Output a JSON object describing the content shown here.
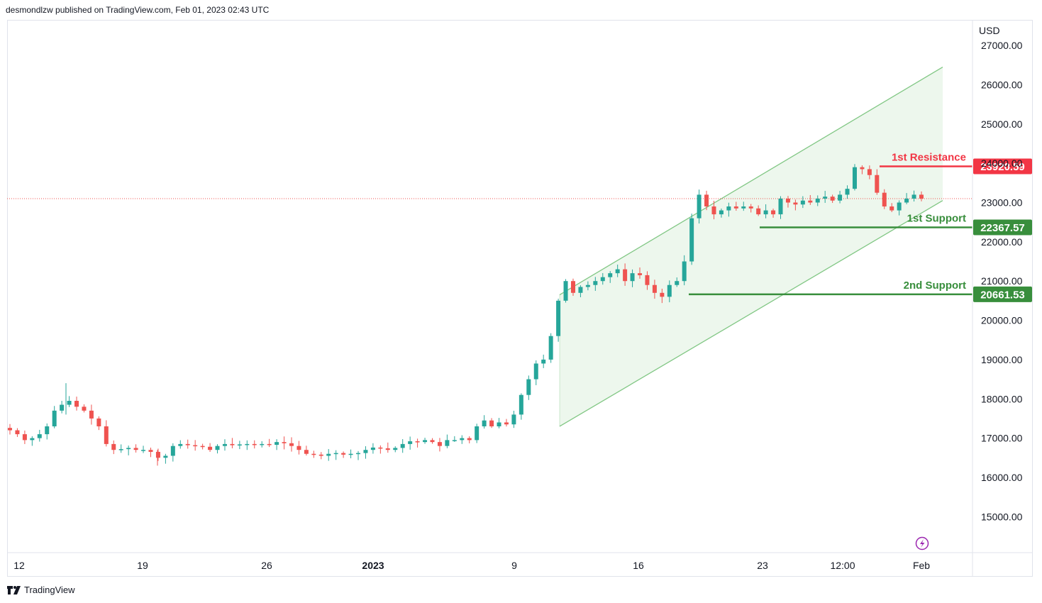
{
  "header": {
    "text": "desmondlzw published on TradingView.com, Feb 01, 2023 02:43 UTC"
  },
  "footer": {
    "brand": "TradingView"
  },
  "colors": {
    "up": "#26a69a",
    "down": "#ef5350",
    "channel": "#4caf50",
    "resistance": "#f23645",
    "support": "#388e3c"
  },
  "chart_data": {
    "type": "candlestick",
    "currency_label": "USD",
    "y_ticks": [
      15000,
      16000,
      17000,
      18000,
      19000,
      20000,
      21000,
      22000,
      23000,
      24000,
      25000,
      26000,
      27000
    ],
    "y_tick_labels": [
      "15000.00",
      "16000.00",
      "17000.00",
      "18000.00",
      "19000.00",
      "20000.00",
      "21000.00",
      "22000.00",
      "23000.00",
      "24000.00",
      "25000.00",
      "26000.00",
      "27000.00"
    ],
    "x_tick_labels": [
      "12",
      "19",
      "26",
      "2023",
      "9",
      "16",
      "23",
      "12:00",
      "Feb"
    ],
    "levels": [
      {
        "name": "1st Resistance",
        "value": 23920.59,
        "label": "23920.59",
        "color": "#f23645"
      },
      {
        "name": "1st Support",
        "value": 22367.57,
        "label": "22367.57",
        "color": "#388e3c"
      },
      {
        "name": "2nd Support",
        "value": 20661.53,
        "label": "20661.53",
        "color": "#388e3c"
      }
    ],
    "current_price": 23100,
    "channel": {
      "upper_start": 20650,
      "upper_end": 26450,
      "lower_start": 17300,
      "lower_end": 23050
    },
    "close_series": [
      17200,
      17100,
      16950,
      17000,
      17100,
      17300,
      17700,
      17850,
      17950,
      17800,
      17700,
      17500,
      17300,
      16850,
      16700,
      16720,
      16750,
      16700,
      16700,
      16650,
      16500,
      16550,
      16800,
      16850,
      16820,
      16800,
      16780,
      16700,
      16800,
      16850,
      16820,
      16840,
      16850,
      16830,
      16850,
      16830,
      16900,
      16870,
      16800,
      16700,
      16600,
      16580,
      16550,
      16600,
      16620,
      16580,
      16600,
      16620,
      16700,
      16760,
      16740,
      16700,
      16750,
      16850,
      16920,
      16900,
      16950,
      16900,
      16800,
      16950,
      16950,
      17000,
      16950,
      17300,
      17450,
      17300,
      17400,
      17350,
      17600,
      18100,
      18500,
      18900,
      19000,
      19600,
      20500,
      21000,
      20700,
      20850,
      20900,
      21000,
      21100,
      21200,
      21300,
      21000,
      21200,
      21150,
      20900,
      20700,
      20600,
      20900,
      21000,
      21500,
      22600,
      23200,
      22900,
      22700,
      22800,
      22900,
      22850,
      22900,
      22850,
      22700,
      22800,
      22700,
      23100,
      23000,
      22950,
      23050,
      23000,
      23100,
      23150,
      23050,
      23200,
      23350,
      23900,
      23850,
      23700,
      23250,
      22900,
      22800,
      23000,
      23100,
      23200,
      23100
    ],
    "extremes": {
      "spike_low": 16300,
      "spike_high": 18400
    }
  }
}
